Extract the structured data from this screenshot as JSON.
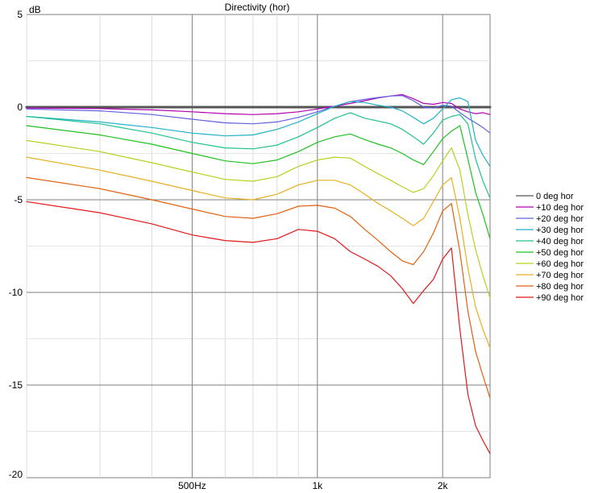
{
  "chart_data": {
    "type": "line",
    "title": "Directivity (hor)",
    "ylabel": "dB",
    "xscale": "log",
    "xlim": [
      200,
      2600
    ],
    "ylim": [
      -20,
      5
    ],
    "x_ticks": [
      {
        "value": 500,
        "label": "500Hz"
      },
      {
        "value": 1000,
        "label": "1k"
      },
      {
        "value": 2000,
        "label": "2k"
      }
    ],
    "y_ticks": [
      {
        "value": 5,
        "label": "5"
      },
      {
        "value": 0,
        "label": "0"
      },
      {
        "value": -5,
        "label": "-5"
      },
      {
        "value": -10,
        "label": "-10"
      },
      {
        "value": -15,
        "label": "-15"
      },
      {
        "value": -20,
        "label": "-20"
      }
    ],
    "legend_position": "right",
    "series": [
      {
        "name": "0 deg hor",
        "color": "#555555",
        "x": [
          200,
          2600
        ],
        "y": [
          0,
          0
        ]
      },
      {
        "name": "+10 deg hor",
        "color": "#b000b0",
        "x": [
          200,
          300,
          400,
          500,
          600,
          700,
          800,
          900,
          1000,
          1100,
          1200,
          1300,
          1400,
          1500,
          1600,
          1700,
          1800,
          1900,
          2000,
          2100,
          2200,
          2300,
          2400,
          2500,
          2600
        ],
        "y": [
          -0.05,
          -0.08,
          -0.15,
          -0.25,
          -0.35,
          -0.4,
          -0.35,
          -0.25,
          -0.1,
          0.05,
          0.2,
          0.35,
          0.5,
          0.6,
          0.68,
          0.45,
          0.2,
          0.15,
          0.25,
          0.2,
          -0.1,
          -0.25,
          -0.35,
          -0.3,
          -0.4
        ]
      },
      {
        "name": "+20 deg hor",
        "color": "#6060e0",
        "x": [
          200,
          300,
          400,
          500,
          600,
          700,
          800,
          900,
          1000,
          1100,
          1200,
          1300,
          1400,
          1500,
          1600,
          1700,
          1800,
          1900,
          2000,
          2100,
          2200,
          2300,
          2400,
          2500,
          2600
        ],
        "y": [
          -0.1,
          -0.2,
          -0.4,
          -0.65,
          -0.85,
          -0.9,
          -0.8,
          -0.55,
          -0.25,
          0.05,
          0.3,
          0.42,
          0.52,
          0.6,
          0.62,
          0.35,
          0.0,
          -0.05,
          0.1,
          0.05,
          -0.3,
          -0.6,
          -0.85,
          -1.1,
          -1.4
        ]
      },
      {
        "name": "+30 deg hor",
        "color": "#20b0c8",
        "x": [
          200,
          300,
          400,
          500,
          600,
          700,
          800,
          900,
          1000,
          1100,
          1200,
          1300,
          1400,
          1500,
          1600,
          1700,
          1800,
          1900,
          2000,
          2100,
          2200,
          2300,
          2400,
          2500,
          2600
        ],
        "y": [
          -0.5,
          -0.8,
          -1.1,
          -1.4,
          -1.55,
          -1.5,
          -1.2,
          -0.8,
          -0.35,
          0.05,
          0.3,
          0.25,
          0.1,
          0.0,
          -0.2,
          -0.55,
          -0.9,
          -0.6,
          -0.1,
          0.4,
          0.5,
          0.3,
          -1.8,
          -2.6,
          -3.2
        ]
      },
      {
        "name": "+40 deg hor",
        "color": "#20c090",
        "x": [
          200,
          300,
          400,
          500,
          600,
          700,
          800,
          900,
          1000,
          1100,
          1200,
          1300,
          1400,
          1500,
          1600,
          1700,
          1800,
          1900,
          2000,
          2100,
          2200,
          2300,
          2400,
          2500,
          2600
        ],
        "y": [
          -0.5,
          -0.9,
          -1.4,
          -1.9,
          -2.2,
          -2.25,
          -2.05,
          -1.6,
          -1.1,
          -0.6,
          -0.3,
          -0.6,
          -0.75,
          -0.9,
          -1.2,
          -1.6,
          -2.0,
          -1.4,
          -0.7,
          -0.5,
          -0.4,
          -0.9,
          -2.8,
          -4.0,
          -4.9
        ]
      },
      {
        "name": "+50 deg hor",
        "color": "#20c020",
        "x": [
          200,
          300,
          400,
          500,
          600,
          700,
          800,
          900,
          1000,
          1100,
          1200,
          1300,
          1400,
          1500,
          1600,
          1700,
          1800,
          1900,
          2000,
          2100,
          2200,
          2300,
          2400,
          2500,
          2600
        ],
        "y": [
          -1.0,
          -1.5,
          -2.0,
          -2.5,
          -2.9,
          -3.05,
          -2.85,
          -2.4,
          -1.9,
          -1.6,
          -1.45,
          -1.75,
          -2.0,
          -2.2,
          -2.5,
          -2.85,
          -3.1,
          -2.4,
          -1.7,
          -1.3,
          -1.0,
          -2.8,
          -4.6,
          -5.8,
          -7.1
        ]
      },
      {
        "name": "+60 deg hor",
        "color": "#b8d020",
        "x": [
          200,
          300,
          400,
          500,
          600,
          700,
          800,
          900,
          1000,
          1100,
          1200,
          1300,
          1400,
          1500,
          1600,
          1700,
          1800,
          1900,
          2000,
          2100,
          2200,
          2300,
          2400,
          2500,
          2600
        ],
        "y": [
          -1.8,
          -2.4,
          -3.0,
          -3.5,
          -3.9,
          -4.0,
          -3.75,
          -3.2,
          -2.85,
          -2.7,
          -2.75,
          -3.2,
          -3.6,
          -3.95,
          -4.3,
          -4.6,
          -4.4,
          -3.7,
          -2.9,
          -2.2,
          -3.4,
          -5.8,
          -7.7,
          -9.1,
          -10.3
        ]
      },
      {
        "name": "+70 deg hor",
        "color": "#e8b020",
        "x": [
          200,
          300,
          400,
          500,
          600,
          700,
          800,
          900,
          1000,
          1100,
          1200,
          1300,
          1400,
          1500,
          1600,
          1700,
          1800,
          1900,
          2000,
          2100,
          2200,
          2300,
          2400,
          2500,
          2600
        ],
        "y": [
          -2.7,
          -3.4,
          -4.0,
          -4.5,
          -4.9,
          -5.0,
          -4.7,
          -4.2,
          -3.95,
          -3.95,
          -4.2,
          -4.7,
          -5.2,
          -5.6,
          -6.0,
          -6.4,
          -6.0,
          -5.1,
          -4.2,
          -3.8,
          -6.0,
          -8.7,
          -10.8,
          -12.0,
          -13.0
        ]
      },
      {
        "name": "+80 deg hor",
        "color": "#e06010",
        "x": [
          200,
          300,
          400,
          500,
          600,
          700,
          800,
          900,
          1000,
          1100,
          1200,
          1300,
          1400,
          1500,
          1600,
          1700,
          1800,
          1900,
          2000,
          2100,
          2200,
          2300,
          2400,
          2500,
          2600
        ],
        "y": [
          -3.8,
          -4.4,
          -5.0,
          -5.5,
          -5.9,
          -6.0,
          -5.75,
          -5.35,
          -5.3,
          -5.45,
          -5.9,
          -6.6,
          -7.2,
          -7.8,
          -8.3,
          -8.5,
          -7.8,
          -6.8,
          -5.6,
          -5.2,
          -7.8,
          -11.0,
          -13.2,
          -14.5,
          -15.7
        ]
      },
      {
        "name": "+90 deg hor",
        "color": "#e01818",
        "x": [
          200,
          300,
          400,
          500,
          600,
          700,
          800,
          900,
          1000,
          1100,
          1200,
          1300,
          1400,
          1500,
          1600,
          1700,
          1800,
          1900,
          2000,
          2100,
          2200,
          2300,
          2400,
          2500,
          2600
        ],
        "y": [
          -5.1,
          -5.7,
          -6.3,
          -6.9,
          -7.2,
          -7.3,
          -7.1,
          -6.6,
          -6.7,
          -7.1,
          -7.8,
          -8.2,
          -8.6,
          -9.1,
          -9.8,
          -10.6,
          -9.9,
          -9.3,
          -8.2,
          -7.6,
          -12.0,
          -15.5,
          -17.2,
          -18.0,
          -18.7
        ]
      }
    ]
  }
}
